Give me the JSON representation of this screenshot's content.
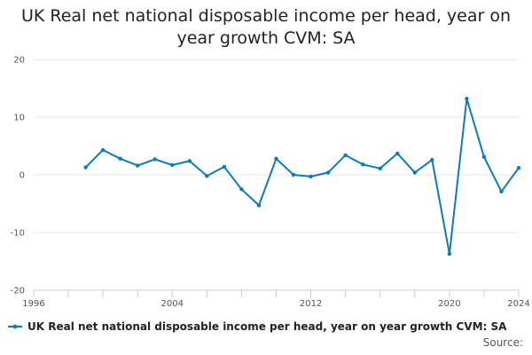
{
  "chart_data": {
    "type": "line",
    "title": "UK Real net national disposable income per head, year on year growth CVM: SA",
    "xlabel": "",
    "ylabel": "",
    "x_ticks": [
      1996,
      2004,
      2012,
      2020,
      2024
    ],
    "y_ticks": [
      20,
      10,
      0,
      -10,
      -20
    ],
    "xlim": [
      1996,
      2024
    ],
    "ylim": [
      -20,
      20
    ],
    "grid": true,
    "legend_position": "bottom",
    "series": [
      {
        "name": "UK Real net national disposable income per head, year on year growth CVM: SA",
        "color": "#0f7ab8",
        "x": [
          1999,
          2000,
          2001,
          2002,
          2003,
          2004,
          2005,
          2006,
          2007,
          2008,
          2009,
          2010,
          2011,
          2012,
          2013,
          2014,
          2015,
          2016,
          2017,
          2018,
          2019,
          2020,
          2021,
          2022,
          2023,
          2024
        ],
        "y": [
          1.3,
          4.3,
          2.8,
          1.6,
          2.7,
          1.7,
          2.4,
          -0.2,
          1.4,
          -2.5,
          -5.3,
          2.8,
          0.0,
          -0.3,
          0.4,
          3.4,
          1.8,
          1.1,
          3.7,
          0.4,
          2.6,
          -13.7,
          13.2,
          3.1,
          -2.9,
          1.2
        ]
      }
    ]
  },
  "source_label": "Source:"
}
